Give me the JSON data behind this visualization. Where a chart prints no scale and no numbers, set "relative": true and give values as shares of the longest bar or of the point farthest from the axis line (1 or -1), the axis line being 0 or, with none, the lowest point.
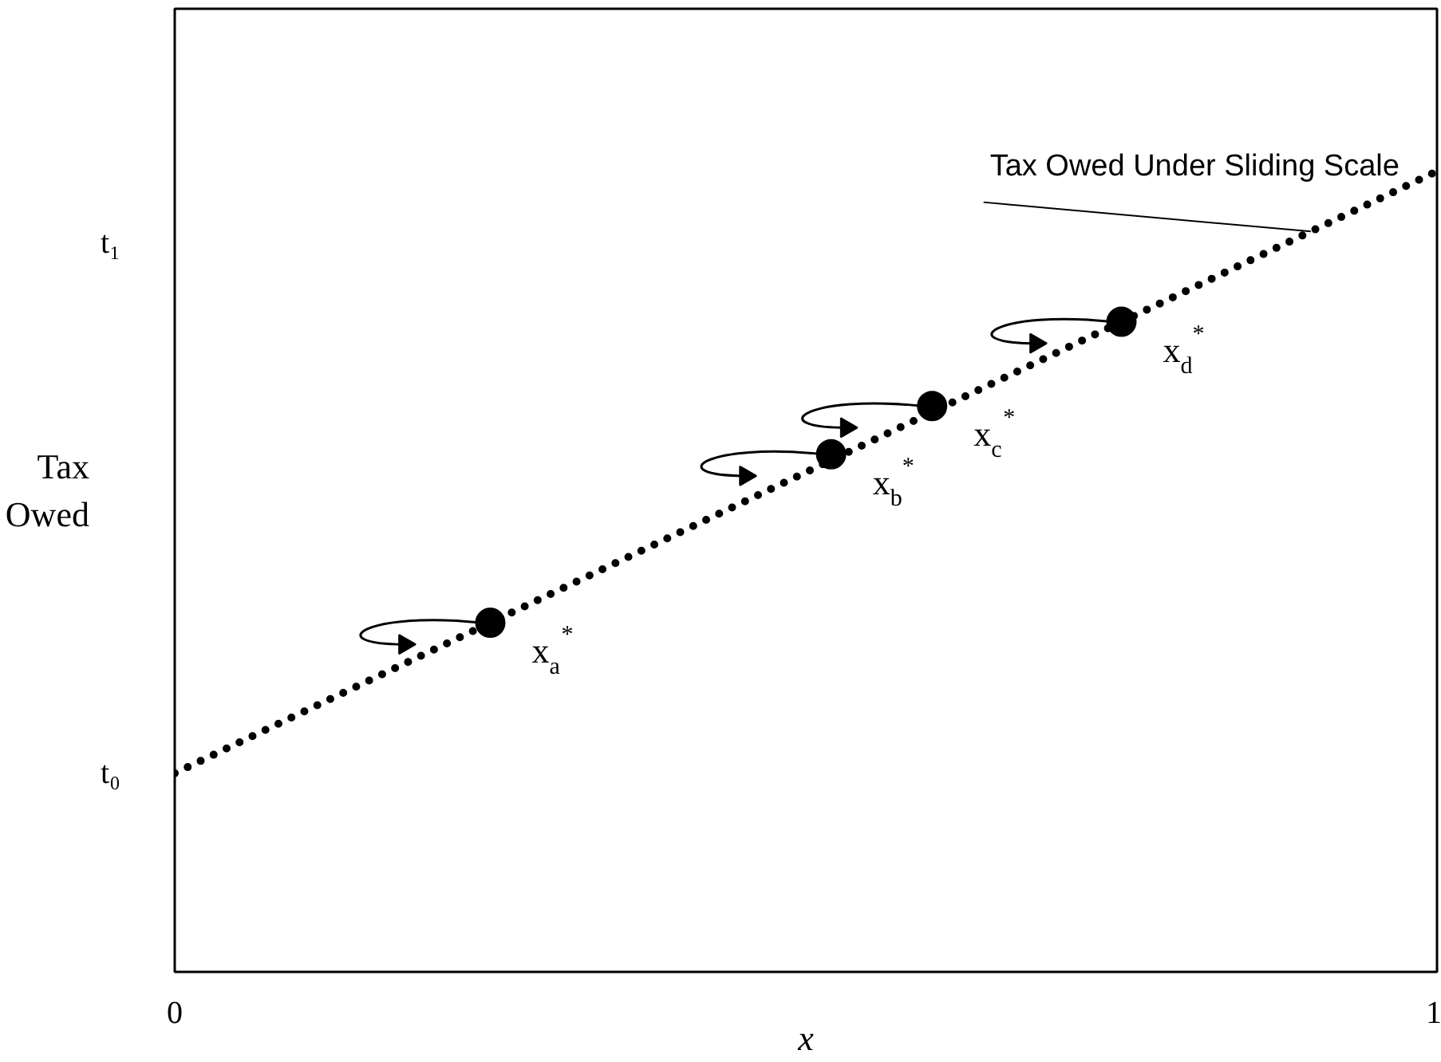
{
  "chart_data": {
    "type": "scatter",
    "relative": true,
    "xlabel": "x",
    "ylabel": "Tax Owed",
    "xlim": [
      0,
      1
    ],
    "xticks": [
      0,
      1
    ],
    "series": [
      {
        "type": "line",
        "x": [
          0,
          1
        ],
        "values": [
          0,
          1
        ],
        "color": "#000000",
        "line_style": "dotted"
      },
      {
        "x": [
          0.25,
          0.52,
          0.6,
          0.75
        ],
        "values": [
          0.25,
          0.53,
          0.61,
          0.75
        ],
        "color": "#000000",
        "marker": "circle"
      }
    ],
    "annotations": [
      {
        "text": "t₀",
        "x": 0,
        "y": 0
      },
      "t₁",
      {
        "text": "Tax Owed Under Sliding Scale",
        "x": 0.9,
        "y": 0.9
      },
      {
        "text": "x$_{a}$$^{*}$",
        "x": 0.25,
        "y": 0.25
      },
      {
        "text": "x$_{b}$$^{*}$",
        "x": 0.52,
        "y": 0.53
      },
      {
        "text": "x$_{c}$$^{*}$",
        "x": 0.6,
        "y": 0.61
      },
      {
        "text": "x$_{d}$$^{*}$",
        "x": 0.75,
        "y": 0.75
      }
    ]
  }
}
